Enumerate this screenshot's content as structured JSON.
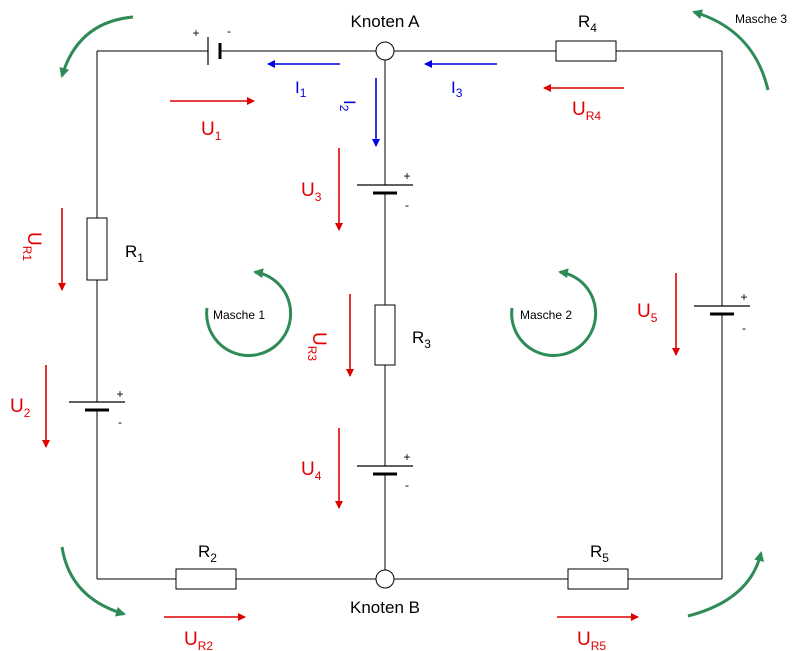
{
  "colors": {
    "wire": "#000000",
    "voltage": "#e00000",
    "current": "#0000e0",
    "mesh": "#2e8b57"
  },
  "nodes": {
    "a": "Knoten A",
    "b": "Knoten B"
  },
  "resistors": {
    "r1": {
      "main": "R",
      "sub": "1"
    },
    "r2": {
      "main": "R",
      "sub": "2"
    },
    "r3": {
      "main": "R",
      "sub": "3"
    },
    "r4": {
      "main": "R",
      "sub": "4"
    },
    "r5": {
      "main": "R",
      "sub": "5"
    }
  },
  "currents": {
    "i1": {
      "main": "I",
      "sub": "1"
    },
    "i2": {
      "main": "I",
      "sub": "2"
    },
    "i3": {
      "main": "I",
      "sub": "3"
    }
  },
  "voltages": {
    "u1": {
      "main": "U",
      "sub": "1"
    },
    "u2": {
      "main": "U",
      "sub": "2"
    },
    "u3": {
      "main": "U",
      "sub": "3"
    },
    "u4": {
      "main": "U",
      "sub": "4"
    },
    "u5": {
      "main": "U",
      "sub": "5"
    },
    "ur1": {
      "main": "U",
      "sub": "R1"
    },
    "ur2": {
      "main": "U",
      "sub": "R2"
    },
    "ur3": {
      "main": "U",
      "sub": "R3"
    },
    "ur4": {
      "main": "U",
      "sub": "R4"
    },
    "ur5": {
      "main": "U",
      "sub": "R5"
    }
  },
  "meshes": {
    "m1": "Masche 1",
    "m2": "Masche 2",
    "m3": "Masche 3"
  },
  "polarity": {
    "plus": "+",
    "minus": "-"
  }
}
